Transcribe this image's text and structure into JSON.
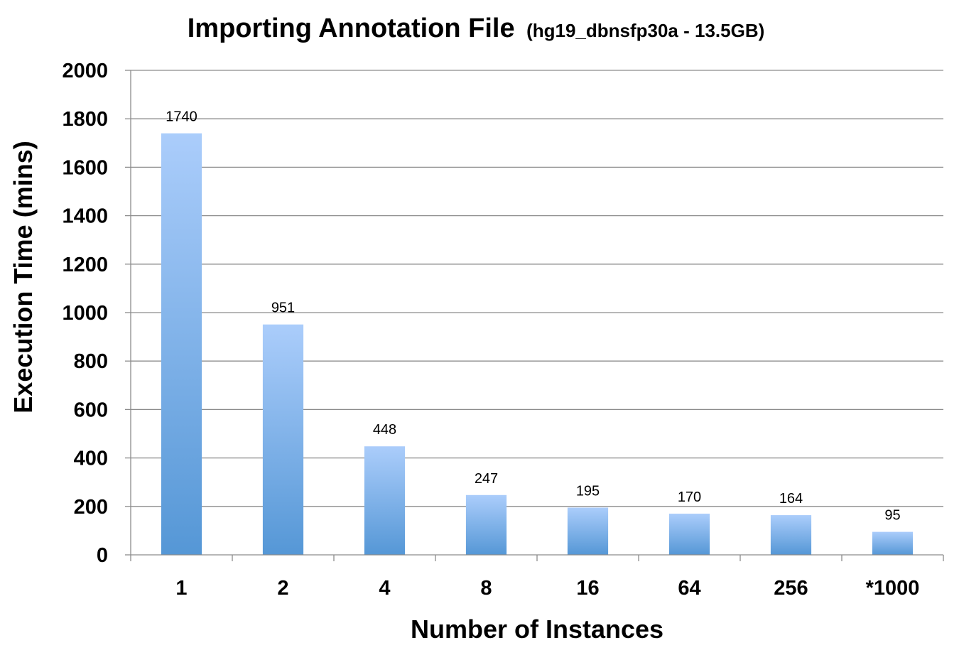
{
  "chart_data": {
    "type": "bar",
    "title": "Importing Annotation File",
    "subtitle": "(hg19_dbnsfp30a - 13.5GB)",
    "xlabel": "Number of Instances",
    "ylabel": "Execution Time (mins)",
    "categories": [
      "1",
      "2",
      "4",
      "8",
      "16",
      "64",
      "256",
      "*1000"
    ],
    "values": [
      1740,
      951,
      448,
      247,
      195,
      170,
      164,
      95
    ],
    "data_labels": [
      "1740",
      "951",
      "448",
      "247",
      "195",
      "170",
      "164",
      "95"
    ],
    "ylim": [
      0,
      2000
    ],
    "yticks": [
      0,
      200,
      400,
      600,
      800,
      1000,
      1200,
      1400,
      1600,
      1800,
      2000
    ],
    "grid": true,
    "legend": "none",
    "colors": {
      "bar_top": "#abcdfb",
      "bar_bottom": "#5597d6",
      "grid": "#8c8c8c"
    }
  }
}
